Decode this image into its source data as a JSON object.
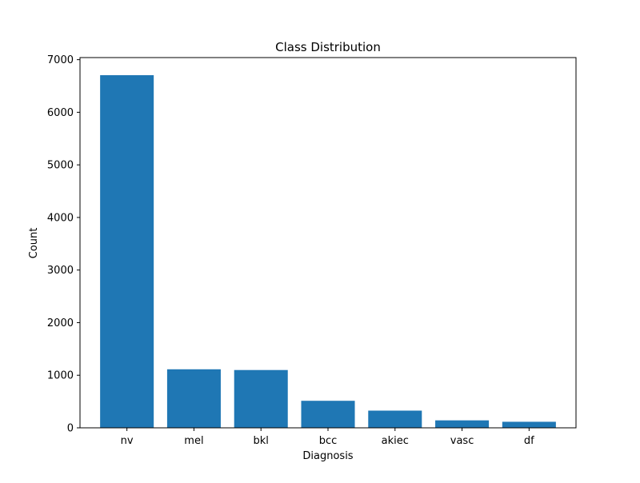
{
  "chart_data": {
    "type": "bar",
    "title": "Class Distribution",
    "xlabel": "Diagnosis",
    "ylabel": "Count",
    "categories": [
      "nv",
      "mel",
      "bkl",
      "bcc",
      "akiec",
      "vasc",
      "df"
    ],
    "values": [
      6705,
      1113,
      1099,
      514,
      327,
      142,
      115
    ],
    "ylim": [
      0,
      7040
    ],
    "yticks": [
      0,
      1000,
      2000,
      3000,
      4000,
      5000,
      6000,
      7000
    ],
    "bar_color": "#1f77b4",
    "grid": false,
    "legend": "none"
  }
}
